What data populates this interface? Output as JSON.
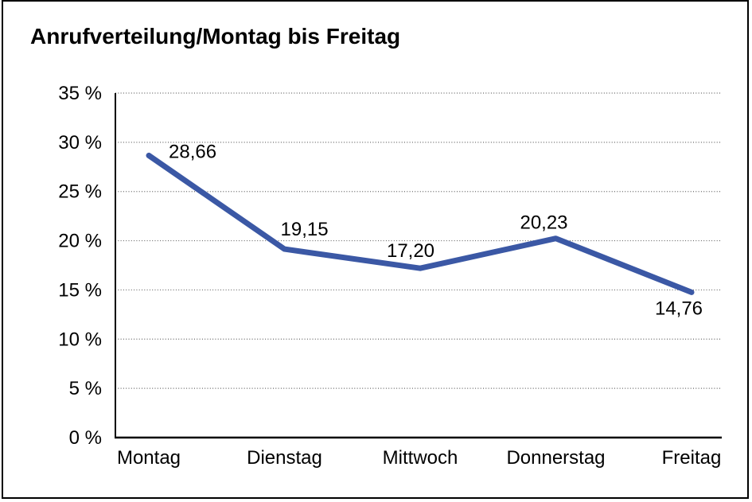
{
  "title": "Anrufverteilung/Montag bis Freitag",
  "colors": {
    "line": "#3B58A5",
    "grid": "#666666",
    "axis": "#000000",
    "text": "#000000",
    "frame": "#000000",
    "background": "#ffffff"
  },
  "chart_data": {
    "type": "line",
    "title": "Anrufverteilung/Montag bis Freitag",
    "categories": [
      "Montag",
      "Dienstag",
      "Mittwoch",
      "Donnerstag",
      "Freitag"
    ],
    "values": [
      28.66,
      19.15,
      17.2,
      20.23,
      14.76
    ],
    "value_labels": [
      "28,66",
      "19,15",
      "17,20",
      "20,23",
      "14,76"
    ],
    "xlabel": "",
    "ylabel": "",
    "ylim": [
      0,
      35
    ],
    "ytick_step": 5,
    "ytick_labels": [
      "0 %",
      "5 %",
      "10 %",
      "15 %",
      "20 %",
      "25 %",
      "30 %",
      "35 %"
    ],
    "grid": "horizontal-dotted",
    "legend": "none"
  }
}
